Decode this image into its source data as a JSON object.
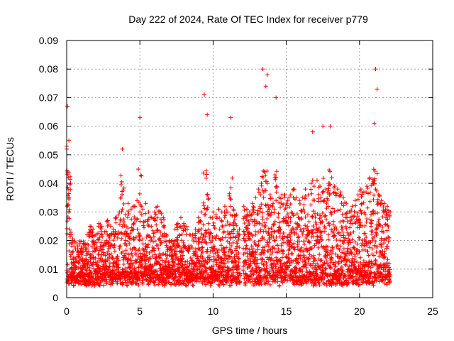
{
  "chart_data": {
    "type": "scatter",
    "title": "Day 222 of 2024, Rate Of TEC Index for receiver p779",
    "xlabel": "GPS time / hours",
    "ylabel": "ROTI / TECUs",
    "xlim": [
      0,
      25
    ],
    "ylim": [
      0,
      0.09
    ],
    "xticks": [
      0,
      5,
      10,
      15,
      20,
      25
    ],
    "xtick_labels": [
      "0",
      "5",
      "10",
      "15",
      "20",
      "25"
    ],
    "yticks": [
      0,
      0.01,
      0.02,
      0.03,
      0.04,
      0.05,
      0.06,
      0.07,
      0.08,
      0.09
    ],
    "ytick_labels": [
      "0",
      "0.01",
      "0.02",
      "0.03",
      "0.04",
      "0.05",
      "0.06",
      "0.07",
      "0.08",
      "0.09"
    ],
    "grid": true,
    "marker": "+",
    "color": "#ff0000",
    "series": [
      {
        "x": [
          0.0,
          0.05,
          0.1,
          0.15,
          0.2,
          0.3,
          0.4,
          0.5,
          0.6,
          0.8,
          1.0,
          1.2,
          1.4,
          1.6,
          1.8,
          2.0,
          2.2,
          2.4,
          2.6,
          2.8,
          3.0,
          3.2,
          3.4,
          3.6,
          3.8,
          4.0,
          4.2,
          4.4,
          4.6,
          4.8,
          5.0,
          5.2,
          5.4,
          5.6,
          5.8,
          6.0,
          6.2,
          6.4,
          6.6,
          6.8,
          7.0,
          7.2,
          7.4,
          7.6,
          7.8,
          8.0,
          8.2,
          8.4,
          8.6,
          8.8,
          9.0,
          9.2,
          9.4,
          9.6,
          9.8,
          10.0,
          10.2,
          10.4,
          10.6,
          10.8,
          11.0,
          11.2,
          11.4,
          11.6,
          11.8,
          12.1,
          12.3,
          12.5,
          12.7,
          12.9,
          13.1,
          13.3,
          13.5,
          13.7,
          13.9,
          14.1,
          14.3,
          14.5,
          14.7,
          14.9,
          15.1,
          15.3,
          15.5,
          15.7,
          15.9,
          16.1,
          16.3,
          16.5,
          16.7,
          16.9,
          17.1,
          17.3,
          17.5,
          17.7,
          17.9,
          18.1,
          18.3,
          18.5,
          18.7,
          18.9,
          19.1,
          19.3,
          19.5,
          19.7,
          19.9,
          20.1,
          20.3,
          20.5,
          20.7,
          20.9,
          21.1,
          21.3,
          21.5,
          21.7,
          21.9,
          22.1,
          0.05,
          0.0,
          0.15,
          9.4,
          9.6,
          11.2,
          13.4,
          13.6,
          13.7,
          14.3,
          21.0,
          21.2,
          21.1,
          5.0,
          3.8,
          18.0,
          16.8,
          17.5
        ],
        "y": [
          0.052,
          0.044,
          0.038,
          0.03,
          0.024,
          0.022,
          0.02,
          0.018,
          0.017,
          0.016,
          0.015,
          0.019,
          0.022,
          0.025,
          0.024,
          0.022,
          0.026,
          0.025,
          0.023,
          0.027,
          0.025,
          0.024,
          0.028,
          0.03,
          0.031,
          0.029,
          0.033,
          0.031,
          0.032,
          0.034,
          0.03,
          0.031,
          0.033,
          0.03,
          0.028,
          0.03,
          0.032,
          0.03,
          0.028,
          0.022,
          0.02,
          0.02,
          0.024,
          0.026,
          0.028,
          0.026,
          0.025,
          0.022,
          0.022,
          0.024,
          0.028,
          0.03,
          0.029,
          0.031,
          0.028,
          0.03,
          0.029,
          0.031,
          0.03,
          0.032,
          0.03,
          0.029,
          0.031,
          0.029,
          0.024,
          0.032,
          0.031,
          0.03,
          0.033,
          0.035,
          0.038,
          0.04,
          0.044,
          0.04,
          0.036,
          0.033,
          0.034,
          0.035,
          0.036,
          0.036,
          0.034,
          0.036,
          0.038,
          0.035,
          0.034,
          0.035,
          0.038,
          0.036,
          0.04,
          0.039,
          0.041,
          0.039,
          0.037,
          0.038,
          0.04,
          0.042,
          0.039,
          0.038,
          0.037,
          0.035,
          0.033,
          0.03,
          0.032,
          0.034,
          0.036,
          0.038,
          0.037,
          0.039,
          0.042,
          0.04,
          0.038,
          0.036,
          0.034,
          0.033,
          0.032,
          0.03,
          0.067,
          0.053,
          0.055,
          0.071,
          0.064,
          0.063,
          0.08,
          0.074,
          0.078,
          0.07,
          0.061,
          0.073,
          0.08,
          0.063,
          0.052,
          0.06,
          0.058,
          0.06
        ]
      }
    ]
  }
}
